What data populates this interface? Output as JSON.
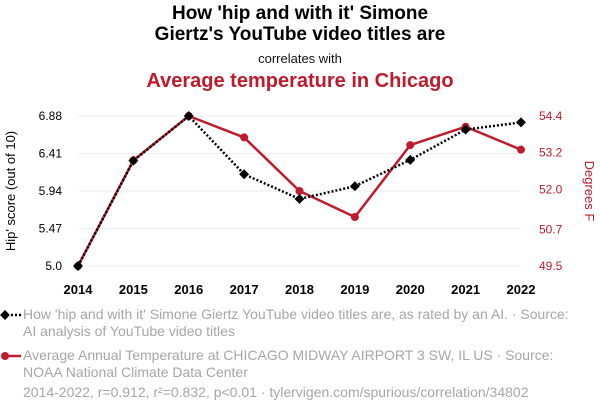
{
  "title_line1": "How 'hip and with it' Simone",
  "title_line2": "Giertz's YouTube video titles are",
  "subtitle": "correlates with",
  "title2": "Average temperature in Chicago",
  "colors": {
    "series1": "#000000",
    "series2": "#bf1b2c",
    "grid": "#eeeeee",
    "footer_text": "#a6a6a6"
  },
  "chart_data": {
    "type": "line",
    "x": [
      "2014",
      "2015",
      "2016",
      "2017",
      "2018",
      "2019",
      "2020",
      "2021",
      "2022"
    ],
    "ylabel_left": "Hip' score (out of 10)",
    "ylabel_right": "Degrees F",
    "left_ticks": [
      "5.0",
      "5.47",
      "5.94",
      "6.41",
      "6.88"
    ],
    "left_tick_values": [
      5.0,
      5.47,
      5.94,
      6.41,
      6.88
    ],
    "right_ticks": [
      "49.5",
      "50.7",
      "52.0",
      "53.2",
      "54.4"
    ],
    "right_tick_values": [
      49.5,
      50.7,
      52.0,
      53.2,
      54.4
    ],
    "left_ylim": [
      5.0,
      6.88
    ],
    "right_ylim": [
      49.5,
      54.4
    ],
    "grid": true,
    "legend_position": "bottom",
    "series": [
      {
        "name": "How 'hip and with it' Simone Giertz YouTube video titles are, as rated by an AI. · Source: AI analysis of YouTube video titles",
        "axis": "left",
        "style": "dotted",
        "marker": "diamond",
        "values": [
          5.0,
          6.32,
          6.88,
          6.15,
          5.84,
          6.0,
          6.33,
          6.71,
          6.8
        ]
      },
      {
        "name": "Average Annual Temperature at CHICAGO MIDWAY AIRPORT 3 SW, IL US · Source: NOAA National Climate Data Center",
        "axis": "right",
        "style": "solid",
        "marker": "circle",
        "values": [
          49.5,
          52.95,
          54.4,
          53.7,
          51.95,
          51.1,
          53.45,
          54.05,
          53.3
        ]
      }
    ]
  },
  "footer": "2014-2022, r=0.912, r²=0.832, p<0.01 · tylervigen.com/spurious/correlation/34802"
}
